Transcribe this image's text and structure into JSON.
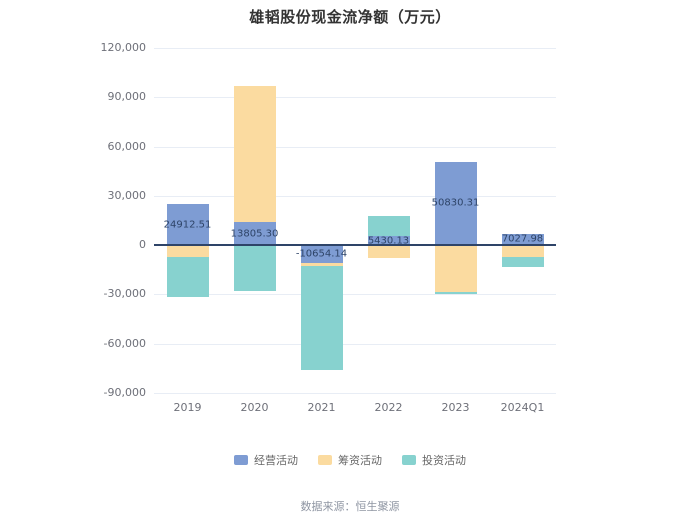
{
  "page": {
    "background": "#ffffff"
  },
  "chart_data": {
    "type": "bar",
    "stacked": true,
    "title": "雄韬股份现金流净额（万元）",
    "categories": [
      "2019",
      "2020",
      "2021",
      "2022",
      "2023",
      "2024Q1"
    ],
    "series": [
      {
        "name": "经营活动",
        "color": "#7e9cd3",
        "values": [
          24912.51,
          13805.3,
          -10654.14,
          5430.13,
          50830.31,
          7027.98
        ]
      },
      {
        "name": "筹资活动",
        "color": "#fbdba0",
        "values": [
          -7300,
          83000,
          -1800,
          -8000,
          -28500,
          -7300
        ]
      },
      {
        "name": "投资活动",
        "color": "#87d2cf",
        "values": [
          -24400,
          -28000,
          -63600,
          12200,
          -1000,
          -6100
        ]
      }
    ],
    "data_labels": [
      "24912.51",
      "13805.30",
      "-10654.14",
      "5430.13",
      "50830.31",
      "7027.98"
    ],
    "yticks": [
      120000,
      90000,
      60000,
      30000,
      0,
      -30000,
      -60000,
      -90000
    ],
    "ylim": [
      -90000,
      120000
    ],
    "grid": true,
    "legend_position": "bottom",
    "legend": [
      "经营活动",
      "筹资活动",
      "投资活动"
    ],
    "source": "数据来源：恒生聚源",
    "colors": {
      "grid": "#e8edf5",
      "zero_axis": "#2e4468",
      "tick_text": "#6e7079",
      "label_text": "#2e4468",
      "title_text": "#333333",
      "source_text": "#8f96a3"
    }
  }
}
